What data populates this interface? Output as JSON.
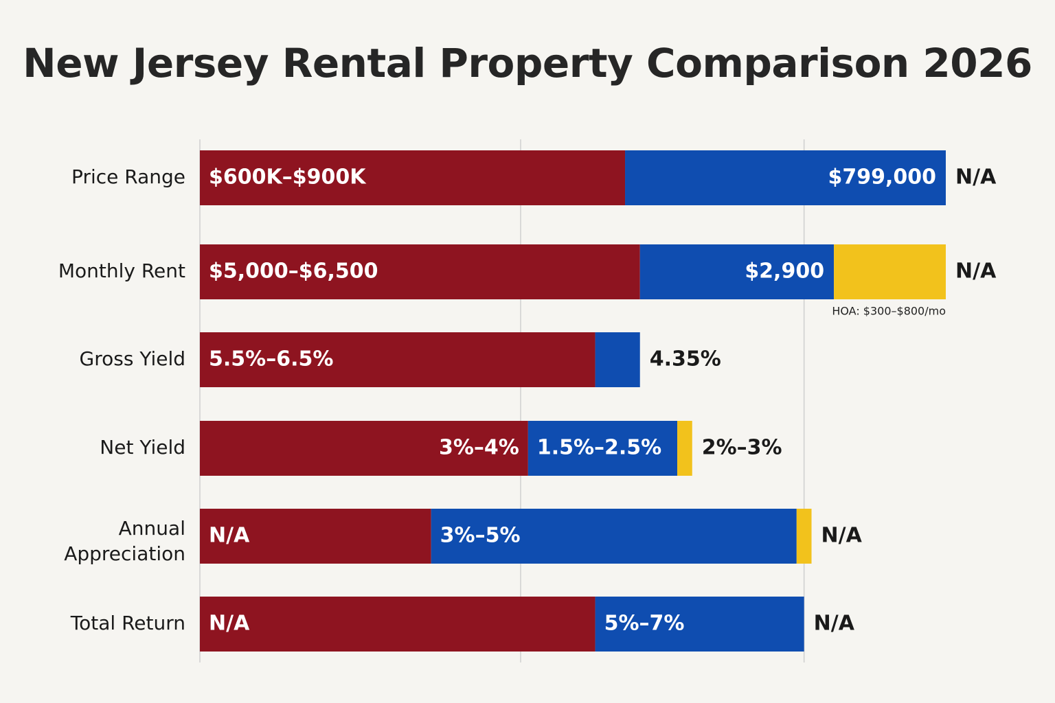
{
  "title": "New Jersey Rental Property Comparison 2026",
  "colors": {
    "background": "#f6f5f1",
    "series_1": "#8e1420",
    "series_2": "#0f4db0",
    "series_3": "#f2c21c",
    "grid": "#cfcfcf"
  },
  "chart_data": {
    "type": "bar",
    "orientation": "horizontal",
    "stacked": true,
    "grid": true,
    "legend": "none",
    "xlim": [
      0,
      100
    ],
    "categories": [
      "Price Range",
      "Monthly Rent",
      "Gross Yield",
      "Net Yield",
      "Annual Appreciation",
      "Total Return"
    ],
    "series": [
      {
        "color": "#8e1420",
        "values": [
          57,
          59,
          53,
          44,
          31,
          53
        ],
        "labels": [
          "$600K–$900K",
          "$5,000–$6,500",
          "5.5%–6.5%",
          "3%–4%",
          "N/A",
          "N/A"
        ]
      },
      {
        "color": "#0f4db0",
        "values": [
          43,
          26,
          6,
          20,
          49,
          28
        ],
        "labels": [
          "$799,000",
          "$2,900",
          "",
          "1.5%–2.5%",
          "3%–5%",
          "5%–7%"
        ]
      },
      {
        "color": "#f2c21c",
        "values": [
          0,
          15,
          0,
          2,
          2,
          0
        ],
        "labels": [
          "",
          "",
          "",
          "",
          "",
          ""
        ]
      }
    ],
    "end_labels": [
      "N/A",
      "N/A",
      "4.35%",
      "2%–3%",
      "N/A",
      "N/A"
    ],
    "annotations": [
      {
        "category": "Monthly Rent",
        "text": "HOA: $300–$800/mo"
      }
    ]
  }
}
